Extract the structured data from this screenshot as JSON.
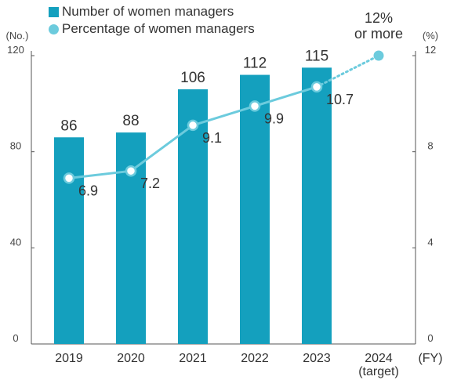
{
  "legend": {
    "bar_label": "Number of women managers",
    "line_label": "Percentage of women managers"
  },
  "colors": {
    "bar": "#14a0be",
    "line": "#6ccbdd",
    "axis": "#555555"
  },
  "chart_data": {
    "type": "bar",
    "categories": [
      "2019",
      "2020",
      "2021",
      "2022",
      "2023",
      "2024\n(target)"
    ],
    "series": [
      {
        "name": "Number of women managers",
        "type": "bar",
        "axis": "left",
        "values": [
          86,
          88,
          106,
          112,
          115,
          null
        ],
        "labels": [
          "86",
          "88",
          "106",
          "112",
          "115",
          ""
        ]
      },
      {
        "name": "Percentage of women managers",
        "type": "line",
        "axis": "right",
        "values": [
          6.9,
          7.2,
          9.1,
          9.9,
          10.7,
          12
        ],
        "labels": [
          "6.9",
          "7.2",
          "9.1",
          "9.9",
          "10.7",
          "12%\nor more"
        ],
        "target_index": 5
      }
    ],
    "y_left": {
      "unit": "(No.)",
      "ticks": [
        "0",
        "40",
        "80",
        "120"
      ],
      "ylim": [
        0,
        120
      ]
    },
    "y_right": {
      "unit": "(%)",
      "ticks": [
        "0",
        "4",
        "8",
        "12"
      ],
      "ylim": [
        0,
        12
      ]
    },
    "x_unit": "(FY)",
    "grid": false,
    "legend_position": "top-left"
  }
}
